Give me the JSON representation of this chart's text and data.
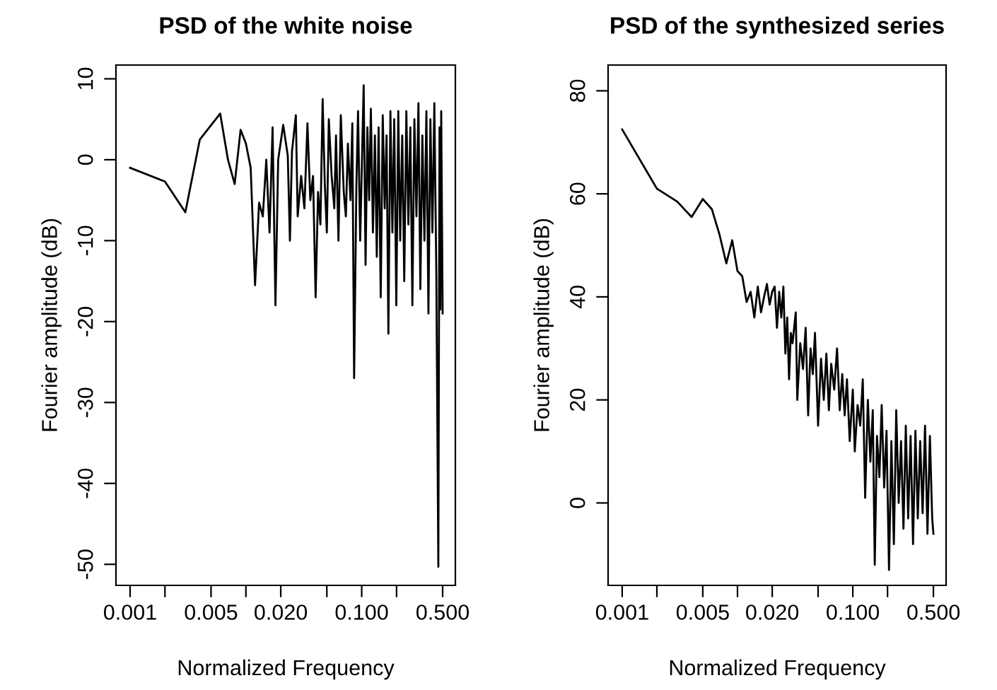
{
  "chart_data": [
    {
      "type": "line",
      "title": "PSD of the white noise",
      "xlabel": "Normalized Frequency",
      "ylabel": "Fourier amplitude (dB)",
      "log": "x",
      "grid": false,
      "legend": false,
      "marker": "none",
      "line_style": "solid",
      "xlim": [
        0.000755,
        0.644
      ],
      "ylim": [
        -52.6,
        11.7
      ],
      "xticks": [
        0.001,
        {
          "value": 0.002,
          "label": null
        },
        {
          "value": 0.005,
          "label": "0.005"
        },
        {
          "value": 0.01,
          "label": null
        },
        {
          "value": 0.02,
          "label": "0.020"
        },
        {
          "value": 0.05,
          "label": null
        },
        {
          "value": 0.1,
          "label": "0.100"
        },
        {
          "value": 0.2,
          "label": null
        },
        {
          "value": 0.5,
          "label": "0.500"
        }
      ],
      "yticks": [
        -50,
        -40,
        -30,
        -20,
        -10,
        0,
        10
      ],
      "series": [
        {
          "color": "#000000",
          "x": [
            0.001,
            0.002,
            0.003,
            0.004,
            0.006,
            0.007,
            0.008,
            0.009,
            0.01,
            0.011,
            0.012,
            0.013,
            0.014,
            0.015,
            0.016,
            0.017,
            0.018,
            0.019,
            0.021,
            0.023,
            0.024,
            0.025,
            0.027,
            0.028,
            0.03,
            0.032,
            0.034,
            0.036,
            0.038,
            0.04,
            0.042,
            0.044,
            0.046,
            0.048,
            0.05,
            0.052,
            0.055,
            0.058,
            0.06,
            0.063,
            0.066,
            0.07,
            0.073,
            0.076,
            0.08,
            0.083,
            0.086,
            0.09,
            0.093,
            0.097,
            0.104,
            0.108,
            0.112,
            0.116,
            0.12,
            0.125,
            0.13,
            0.135,
            0.14,
            0.146,
            0.152,
            0.158,
            0.164,
            0.17,
            0.177,
            0.184,
            0.191,
            0.199,
            0.207,
            0.215,
            0.224,
            0.233,
            0.243,
            0.253,
            0.263,
            0.274,
            0.285,
            0.297,
            0.309,
            0.321,
            0.334,
            0.348,
            0.362,
            0.377,
            0.392,
            0.408,
            0.424,
            0.441,
            0.459,
            0.47,
            0.478,
            0.486,
            0.494,
            0.5
          ],
          "values": [
            -1,
            -2.7,
            -6.5,
            2.5,
            5.7,
            0,
            -3,
            3.7,
            2,
            -1,
            -15.5,
            -5.3,
            -7,
            0,
            -9,
            4,
            -18,
            0,
            4.3,
            0.5,
            -10,
            1,
            5.5,
            -7,
            -2,
            -6,
            4.5,
            -5,
            -2,
            -17,
            -4,
            -8,
            7.5,
            -3,
            -9,
            5,
            -2,
            -6,
            3,
            -10,
            5.5,
            -4,
            -7,
            2,
            -5,
            4.5,
            -27,
            -3,
            6,
            -10,
            9.2,
            -13,
            4,
            -5,
            6.3,
            -9,
            3,
            -12,
            4,
            -17,
            5.5,
            -6,
            3,
            -21.5,
            6,
            -9,
            5,
            -18,
            6,
            -10,
            3,
            -15,
            6,
            -8,
            4,
            -18,
            5,
            -7,
            7,
            -16,
            3,
            -10,
            6,
            -19,
            5,
            -9,
            7,
            -14,
            -50.3,
            4,
            -18.5,
            6,
            -8,
            -19
          ]
        }
      ]
    },
    {
      "type": "line",
      "title": "PSD of the synthesized series",
      "xlabel": "Normalized Frequency",
      "ylabel": "Fourier amplitude (dB)",
      "log": "x",
      "grid": false,
      "legend": false,
      "marker": "none",
      "line_style": "solid",
      "xlim": [
        0.000755,
        0.644
      ],
      "ylim": [
        -16,
        85
      ],
      "xticks": [
        0.001,
        {
          "value": 0.002,
          "label": null
        },
        {
          "value": 0.005,
          "label": "0.005"
        },
        {
          "value": 0.01,
          "label": null
        },
        {
          "value": 0.02,
          "label": "0.020"
        },
        {
          "value": 0.05,
          "label": null
        },
        {
          "value": 0.1,
          "label": "0.100"
        },
        {
          "value": 0.2,
          "label": null
        },
        {
          "value": 0.5,
          "label": "0.500"
        }
      ],
      "yticks": [
        0,
        20,
        40,
        60,
        80
      ],
      "series": [
        {
          "color": "#000000",
          "x": [
            0.001,
            0.002,
            0.003,
            0.004,
            0.005,
            0.006,
            0.007,
            0.008,
            0.009,
            0.01,
            0.011,
            0.012,
            0.013,
            0.014,
            0.015,
            0.016,
            0.017,
            0.018,
            0.019,
            0.02,
            0.021,
            0.022,
            0.023,
            0.024,
            0.025,
            0.026,
            0.027,
            0.028,
            0.029,
            0.03,
            0.032,
            0.033,
            0.035,
            0.037,
            0.039,
            0.041,
            0.043,
            0.045,
            0.047,
            0.05,
            0.053,
            0.056,
            0.059,
            0.062,
            0.065,
            0.069,
            0.073,
            0.077,
            0.081,
            0.085,
            0.089,
            0.094,
            0.1,
            0.104,
            0.11,
            0.116,
            0.122,
            0.128,
            0.135,
            0.142,
            0.149,
            0.155,
            0.162,
            0.17,
            0.178,
            0.187,
            0.196,
            0.206,
            0.216,
            0.227,
            0.238,
            0.25,
            0.262,
            0.275,
            0.288,
            0.302,
            0.317,
            0.333,
            0.349,
            0.366,
            0.384,
            0.403,
            0.423,
            0.444,
            0.466,
            0.488,
            0.5
          ],
          "values": [
            72.5,
            61,
            58.5,
            55.5,
            59,
            57,
            52,
            46.5,
            51,
            45,
            44,
            39,
            41,
            36,
            42,
            37,
            40,
            42.5,
            38.5,
            41,
            42,
            34,
            41,
            36,
            42,
            29,
            36,
            24,
            33,
            31,
            37,
            20,
            31,
            26,
            34,
            17,
            30,
            25,
            33,
            15,
            28,
            20,
            29,
            18,
            27,
            22,
            30,
            18,
            25,
            17,
            24,
            12,
            22,
            10,
            19,
            15,
            24,
            1,
            20,
            8,
            18,
            -12,
            13,
            5,
            19,
            3,
            14,
            -13,
            12,
            -8,
            18,
            0,
            12,
            -5,
            15,
            -3,
            13,
            -8,
            14,
            -3,
            12,
            -2,
            15,
            -6,
            13,
            -3,
            -6
          ]
        }
      ]
    }
  ]
}
